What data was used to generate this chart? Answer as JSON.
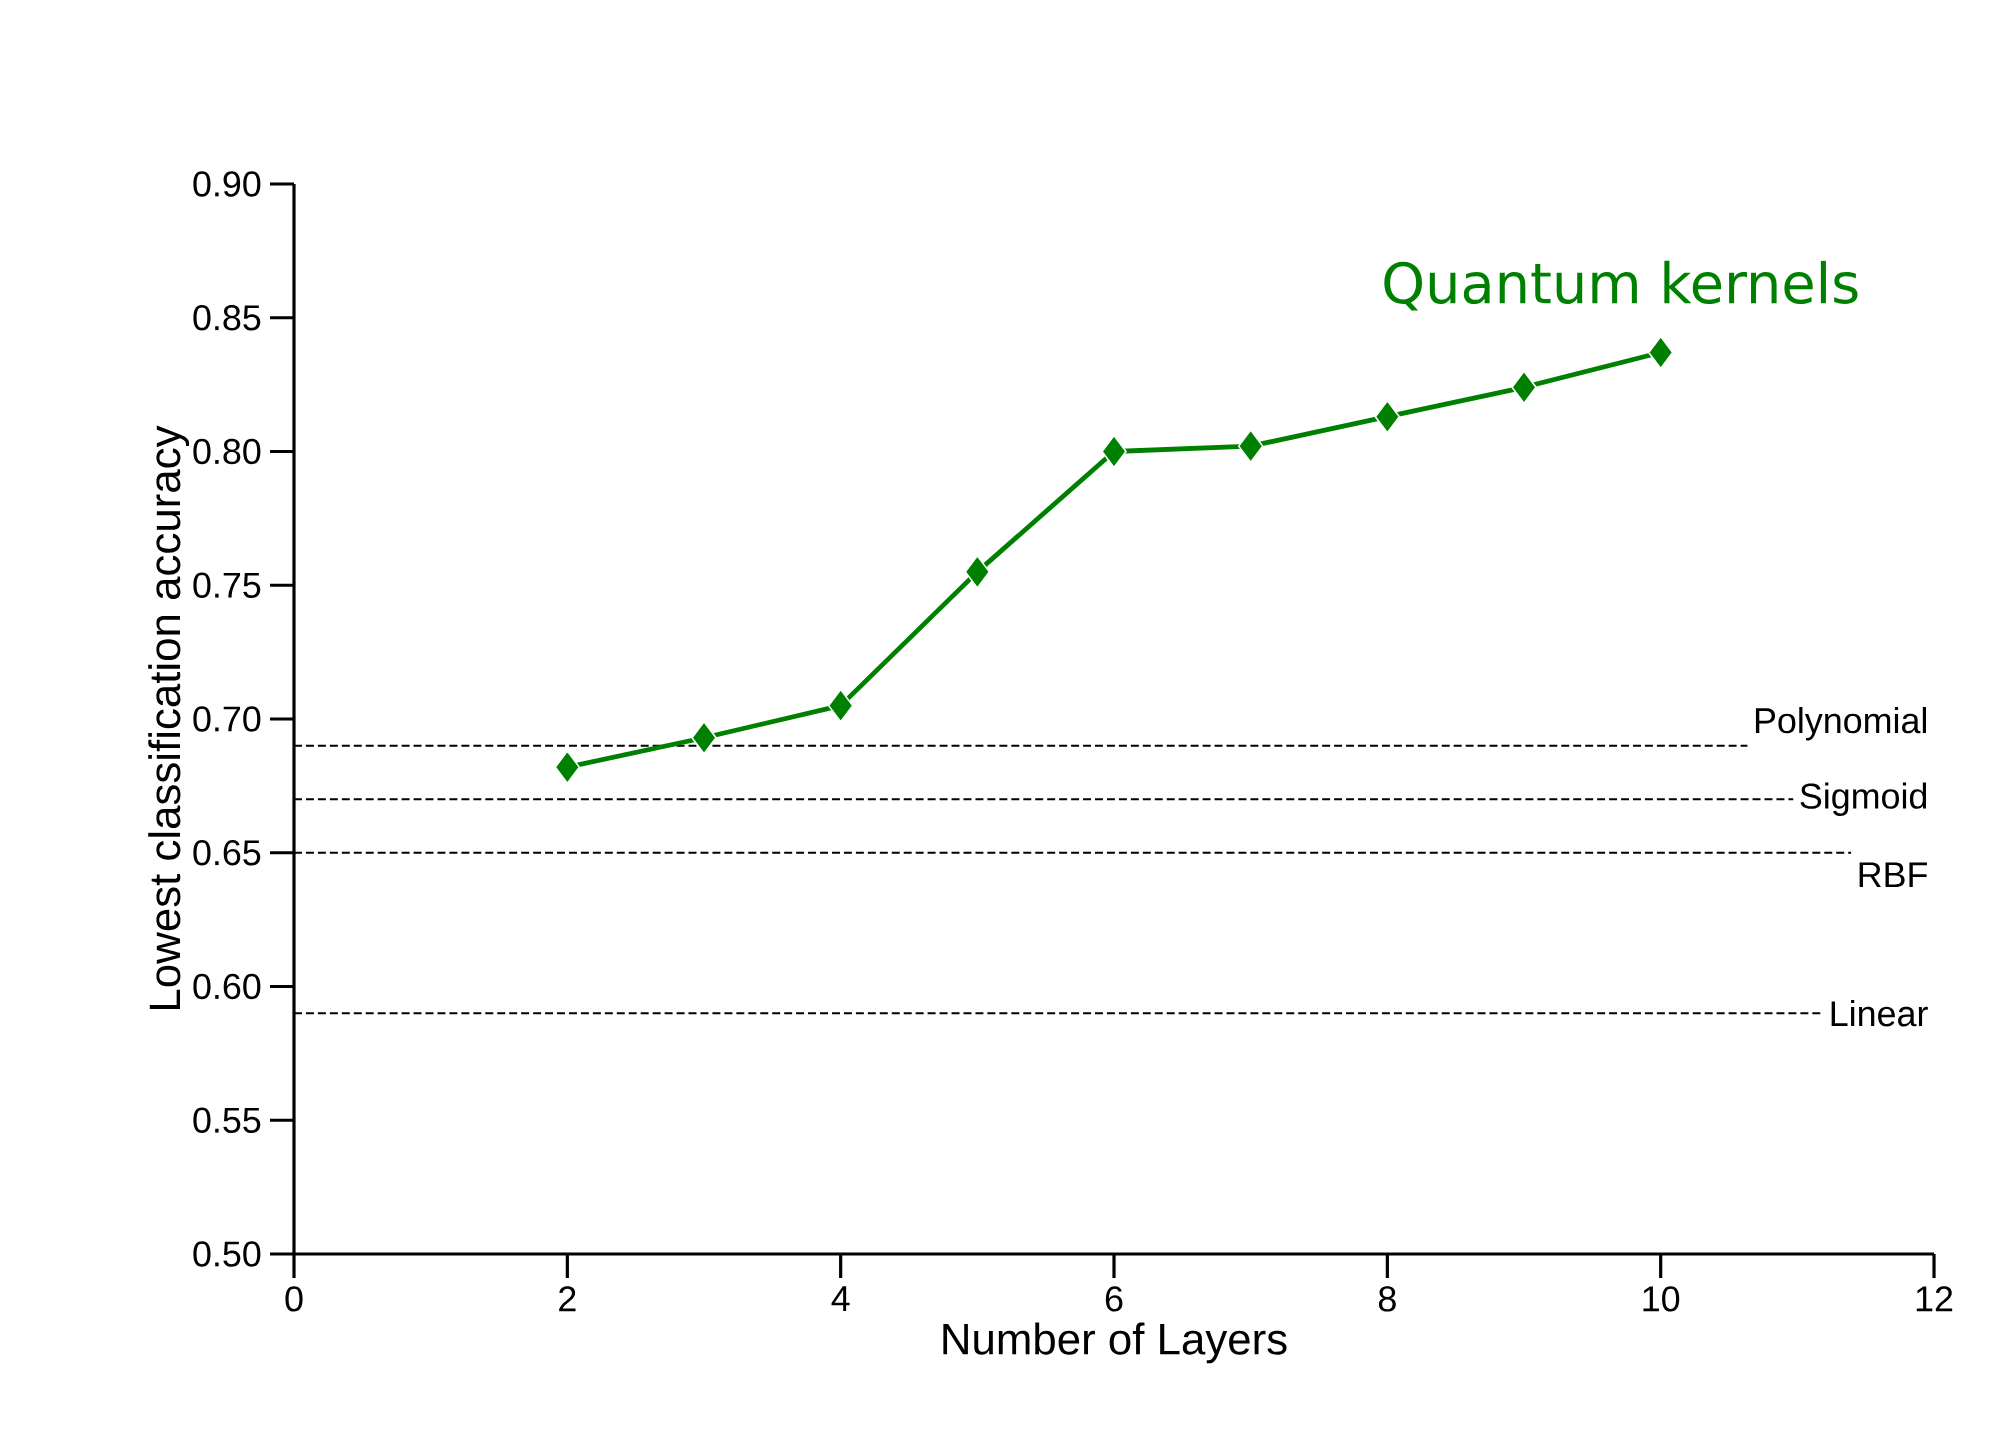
{
  "chart_data": {
    "type": "line",
    "title": "Quantum kernels",
    "xlabel": "Number of Layers",
    "ylabel": "Lowest classification accuracy",
    "x": [
      2,
      3,
      4,
      5,
      6,
      7,
      8,
      9,
      10
    ],
    "series": [
      {
        "color": "#008000",
        "values": [
          0.682,
          0.693,
          0.705,
          0.755,
          0.8,
          0.802,
          0.813,
          0.824,
          0.837
        ]
      }
    ],
    "marker": "diamond",
    "line_style": "solid",
    "grid": false,
    "xlim": [
      0,
      12
    ],
    "xticks": [
      0,
      2,
      4,
      6,
      8,
      10,
      12
    ],
    "ylim": [
      0.5,
      0.9
    ],
    "yticks": [
      {
        "value": 0.5,
        "label": "0.50"
      },
      {
        "value": 0.55,
        "label": "0.55"
      },
      {
        "value": 0.6,
        "label": "0.60"
      },
      {
        "value": 0.65,
        "label": "0.65"
      },
      {
        "value": 0.7,
        "label": "0.70"
      },
      {
        "value": 0.75,
        "label": "0.75"
      },
      {
        "value": 0.8,
        "label": "0.80"
      },
      {
        "value": 0.85,
        "label": "0.85"
      },
      {
        "value": 0.9,
        "label": "0.90"
      }
    ],
    "ref_lines": [
      {
        "axis": "y",
        "value": 0.69,
        "label": "Polynomial",
        "line_style": "dashed",
        "color": "#000000"
      },
      {
        "axis": "y",
        "value": 0.67,
        "label": "Sigmoid",
        "line_style": "dashed",
        "color": "#000000"
      },
      {
        "axis": "y",
        "value": 0.65,
        "label": "RBF",
        "line_style": "dashed",
        "color": "#000000"
      },
      {
        "axis": "y",
        "value": 0.59,
        "label": "Linear",
        "line_style": "dashed",
        "color": "#000000"
      }
    ]
  }
}
